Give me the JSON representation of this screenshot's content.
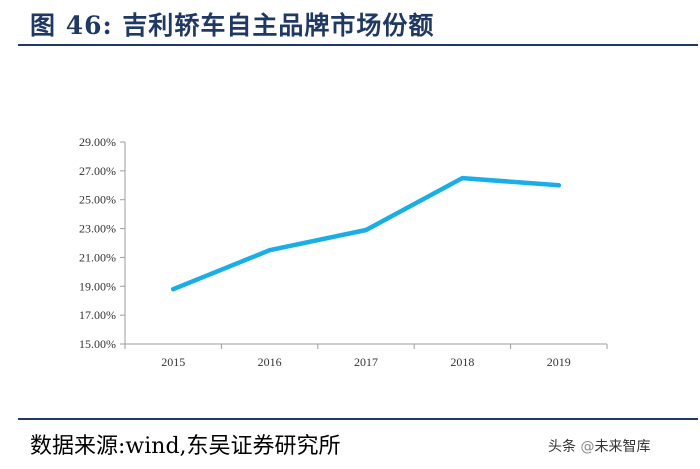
{
  "header": {
    "title": "图 46:  吉利轿车自主品牌市场份额"
  },
  "footer": {
    "source": "数据来源:wind,东吴证券研究所",
    "watermark_prefix": "头条",
    "watermark_sep": " @",
    "watermark_name": "未来智库"
  },
  "colors": {
    "line": "#1aaee6",
    "axis": "#9e9e9e",
    "title": "#1f3864"
  },
  "chart_data": {
    "type": "line",
    "title": "",
    "xlabel": "",
    "ylabel": "",
    "categories": [
      "2015",
      "2016",
      "2017",
      "2018",
      "2019"
    ],
    "series": [
      {
        "values": [
          18.8,
          21.5,
          22.9,
          26.5,
          26.0
        ]
      }
    ],
    "ylim": [
      15,
      29
    ],
    "yticks": [
      "15.00%",
      "17.00%",
      "19.00%",
      "21.00%",
      "23.00%",
      "25.00%",
      "27.00%",
      "29.00%"
    ],
    "grid": false,
    "legend": "none"
  }
}
